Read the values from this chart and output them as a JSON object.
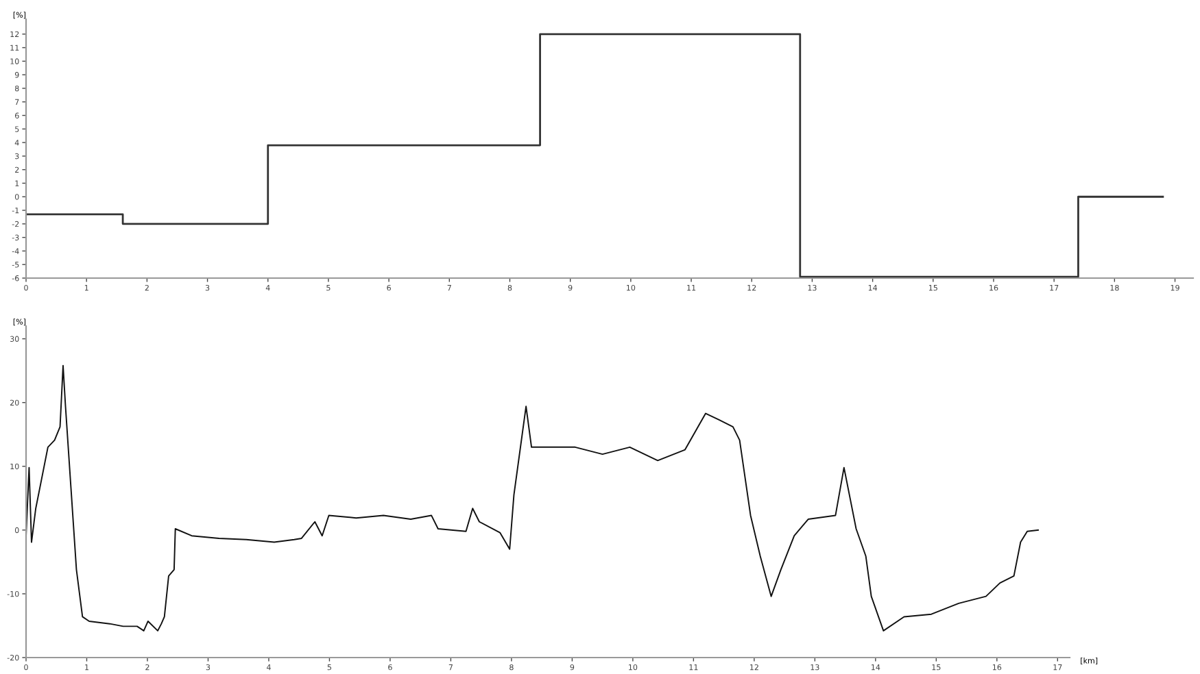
{
  "chart_data": [
    {
      "type": "step",
      "ylabel": "[%]",
      "x": [
        0,
        1.6,
        4.0,
        8.5,
        12.8,
        17.4,
        18.8
      ],
      "values": [
        -1.3,
        -2,
        3.8,
        12,
        -5.9,
        0,
        0
      ],
      "color": "#333333",
      "xlim": [
        0,
        19.3
      ],
      "ylim": [
        -6,
        13.1
      ],
      "xticks": [
        0,
        1,
        2,
        3,
        4,
        5,
        6,
        7,
        8,
        9,
        10,
        11,
        12,
        13,
        14,
        15,
        16,
        17,
        18,
        19
      ],
      "yticks": [
        -6,
        -5,
        -4,
        -3,
        -2,
        -1,
        0,
        1,
        2,
        3,
        4,
        5,
        6,
        7,
        8,
        9,
        10,
        11,
        12
      ],
      "grid": false,
      "legend": false
    },
    {
      "type": "line",
      "ylabel": "[%]",
      "xlabel": "[km]",
      "color": "#111111",
      "x": [
        0,
        0.05,
        0.09,
        0.16,
        0.25,
        0.36,
        0.47,
        0.56,
        0.61,
        0.65,
        0.74,
        0.83,
        0.93,
        1.04,
        1.38,
        1.6,
        1.83,
        1.94,
        2.01,
        2.17,
        2.23,
        2.28,
        2.35,
        2.44,
        2.46,
        2.73,
        3.18,
        3.63,
        4.09,
        4.42,
        4.54,
        4.76,
        4.88,
        4.99,
        5.44,
        5.89,
        6.34,
        6.68,
        6.79,
        7.25,
        7.36,
        7.47,
        7.81,
        7.97,
        8.04,
        8.24,
        8.33,
        8.49,
        9.05,
        9.5,
        9.95,
        10.41,
        10.86,
        11.2,
        11.42,
        11.65,
        11.76,
        11.94,
        12.1,
        12.28,
        12.44,
        12.66,
        12.89,
        13.34,
        13.48,
        13.68,
        13.84,
        13.93,
        14.13,
        14.47,
        14.92,
        15.37,
        15.82,
        16.05,
        16.28,
        16.39,
        16.5,
        16.68
      ],
      "values": [
        -0.9,
        9.8,
        -1.9,
        3.4,
        7.7,
        13,
        14.1,
        16.2,
        25.8,
        19.4,
        6.6,
        -6.2,
        -13.6,
        -14.3,
        -14.7,
        -15.1,
        -15.1,
        -15.8,
        -14.3,
        -15.8,
        -14.7,
        -13.6,
        -7.2,
        -6.2,
        0.2,
        -0.9,
        -1.3,
        -1.5,
        -1.9,
        -1.5,
        -1.3,
        1.3,
        -0.9,
        2.3,
        1.9,
        2.3,
        1.7,
        2.3,
        0.2,
        -0.2,
        3.4,
        1.3,
        -0.4,
        -3,
        5.5,
        19.4,
        13,
        13,
        13,
        11.9,
        13,
        10.9,
        12.6,
        18.3,
        17.3,
        16.2,
        14.1,
        2.3,
        -4.1,
        -10.4,
        -6.2,
        -0.9,
        1.7,
        2.3,
        9.8,
        0.2,
        -4.1,
        -10.4,
        -15.8,
        -13.6,
        -13.2,
        -11.5,
        -10.4,
        -8.3,
        -7.2,
        -1.9,
        -0.2,
        0
      ],
      "xlim": [
        0,
        17.2
      ],
      "ylim": [
        -20,
        32
      ],
      "xticks": [
        0,
        1,
        2,
        3,
        4,
        5,
        6,
        7,
        8,
        9,
        10,
        11,
        12,
        13,
        14,
        15,
        16,
        17
      ],
      "yticks": [
        -20,
        -10,
        0,
        10,
        20,
        30
      ],
      "grid": false,
      "legend": false
    }
  ]
}
